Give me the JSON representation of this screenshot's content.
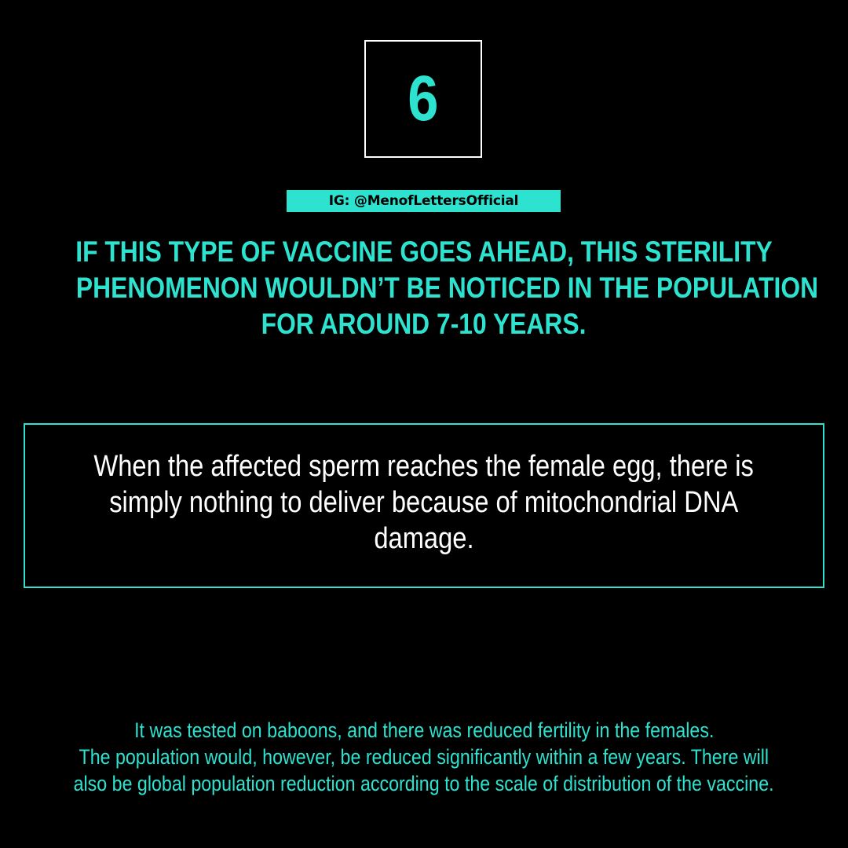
{
  "slide": {
    "number": "6",
    "handle": "IG: @MenofLettersOfficial",
    "headline_lines": [
      "IF THIS TYPE OF VACCINE GOES AHEAD, THIS STERILITY",
      "PHENOMENON WOULDN’T BE NOTICED IN THE POPULATION",
      "FOR AROUND 7-10 YEARS."
    ],
    "quote_lines": [
      "When the affected sperm reaches the female egg, there is",
      "simply nothing to deliver because of mitochondrial DNA",
      "damage."
    ],
    "footnote_lines": [
      "It was tested on baboons, and there was reduced fertility in the females.",
      "The population would, however, be reduced significantly within a few years. There will",
      "also be global population reduction according to the scale of distribution of the vaccine."
    ]
  },
  "colors": {
    "background": "#000000",
    "accent": "#2de3cf",
    "text": "#ffffff"
  }
}
